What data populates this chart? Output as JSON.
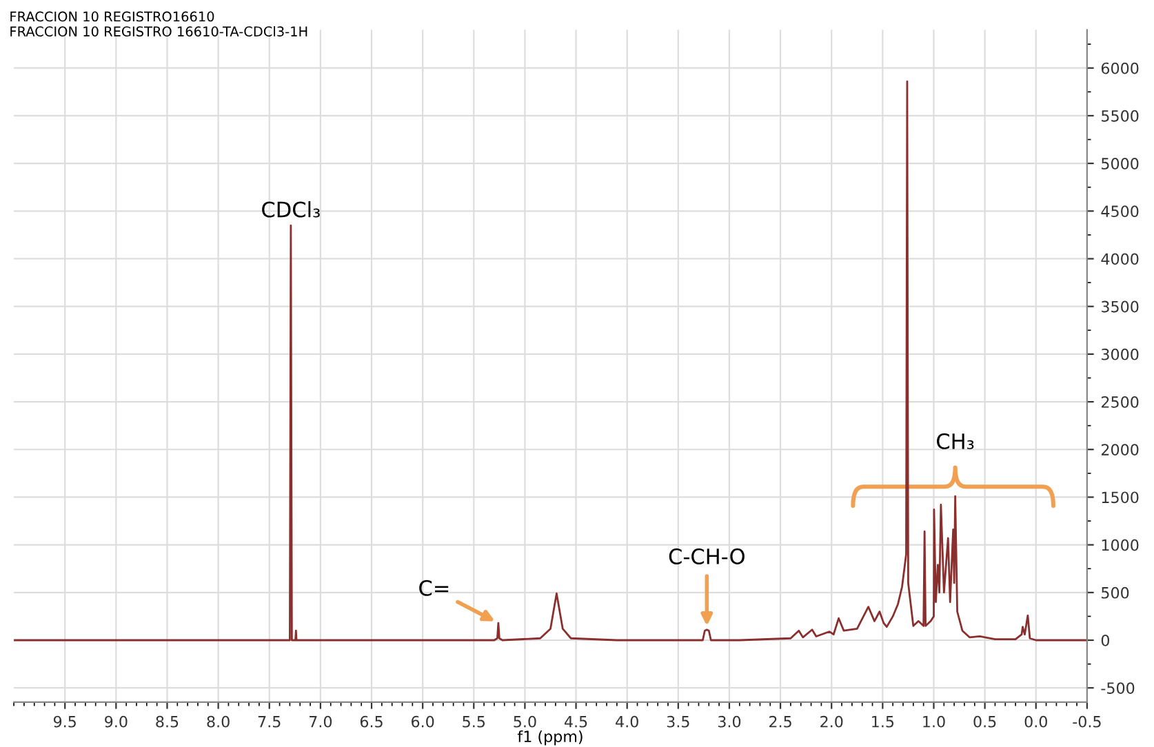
{
  "chart_data": {
    "type": "line",
    "title": "FRACCION 10 REGISTRO16610",
    "subtitle": "FRACCION 10 REGISTRO 16610-TA-CDCl3-1H",
    "xlabel": "f1 (ppm)",
    "xlim": [
      10.0,
      -0.5
    ],
    "xticks": [
      9.5,
      {
        "value": 9,
        "label": "9.0"
      },
      8.5,
      {
        "value": 8,
        "label": "8.0"
      },
      7.5,
      {
        "value": 7,
        "label": "7.0"
      },
      6.5,
      {
        "value": 6,
        "label": "6.0"
      },
      5.5,
      {
        "value": 5,
        "label": "5.0"
      },
      4.5,
      {
        "value": 4,
        "label": "4.0"
      },
      3.5,
      {
        "value": 3,
        "label": "3.0"
      },
      2.5,
      {
        "value": 2,
        "label": "2.0"
      },
      1.5,
      {
        "value": 1,
        "label": "1.0"
      },
      0.5,
      {
        "value": 0,
        "label": "0.0"
      },
      -0.5
    ],
    "ylim": [
      -650,
      6400
    ],
    "yticks": [
      -500,
      0,
      500,
      1000,
      1500,
      2000,
      2500,
      3000,
      3500,
      4000,
      4500,
      5000,
      5500,
      6000
    ],
    "grid": true,
    "marker": "none",
    "line_style": "solid",
    "series": [
      {
        "color": "#8b2e2e",
        "x": [
          10.0,
          7.35,
          7.3,
          7.29,
          7.28,
          7.245,
          7.24,
          7.235,
          5.3,
          5.27,
          5.26,
          5.25,
          5.22,
          4.85,
          4.75,
          4.69,
          4.63,
          4.55,
          4.1,
          3.26,
          3.24,
          3.22,
          3.2,
          3.18,
          2.9,
          2.4,
          2.32,
          2.28,
          2.19,
          2.15,
          2.02,
          1.98,
          1.93,
          1.88,
          1.75,
          1.64,
          1.58,
          1.53,
          1.49,
          1.46,
          1.4,
          1.35,
          1.31,
          1.27,
          1.26,
          1.25,
          1.2,
          1.15,
          1.1,
          1.09,
          1.08,
          1.03,
          1.0,
          0.997,
          0.98,
          0.96,
          0.945,
          0.93,
          0.9,
          0.86,
          0.84,
          0.81,
          0.8,
          0.79,
          0.77,
          0.72,
          0.65,
          0.55,
          0.4,
          0.2,
          0.14,
          0.13,
          0.11,
          0.08,
          0.06,
          0.0,
          -0.5
        ],
        "values": [
          0,
          0,
          0,
          4350,
          0,
          0,
          100,
          0,
          0,
          20,
          180,
          20,
          0,
          20,
          120,
          490,
          120,
          20,
          0,
          0,
          100,
          110,
          100,
          0,
          0,
          20,
          100,
          30,
          110,
          40,
          90,
          60,
          230,
          100,
          120,
          350,
          200,
          300,
          180,
          140,
          250,
          380,
          560,
          900,
          5860,
          600,
          150,
          200,
          150,
          1140,
          150,
          200,
          250,
          1370,
          400,
          790,
          500,
          1420,
          500,
          1070,
          400,
          1160,
          600,
          1510,
          300,
          100,
          30,
          40,
          10,
          10,
          60,
          140,
          60,
          260,
          20,
          0,
          0
        ]
      }
    ],
    "annotations": [
      {
        "text": "CDCl₃",
        "x": 7.29,
        "y": 4350
      },
      {
        "text": "C=",
        "x": 5.26,
        "y": 180
      },
      {
        "text": "C-CH-O",
        "x": 3.22,
        "y": 110
      },
      {
        "text": "CH₃",
        "x": 0.79,
        "y": 1510
      }
    ]
  }
}
